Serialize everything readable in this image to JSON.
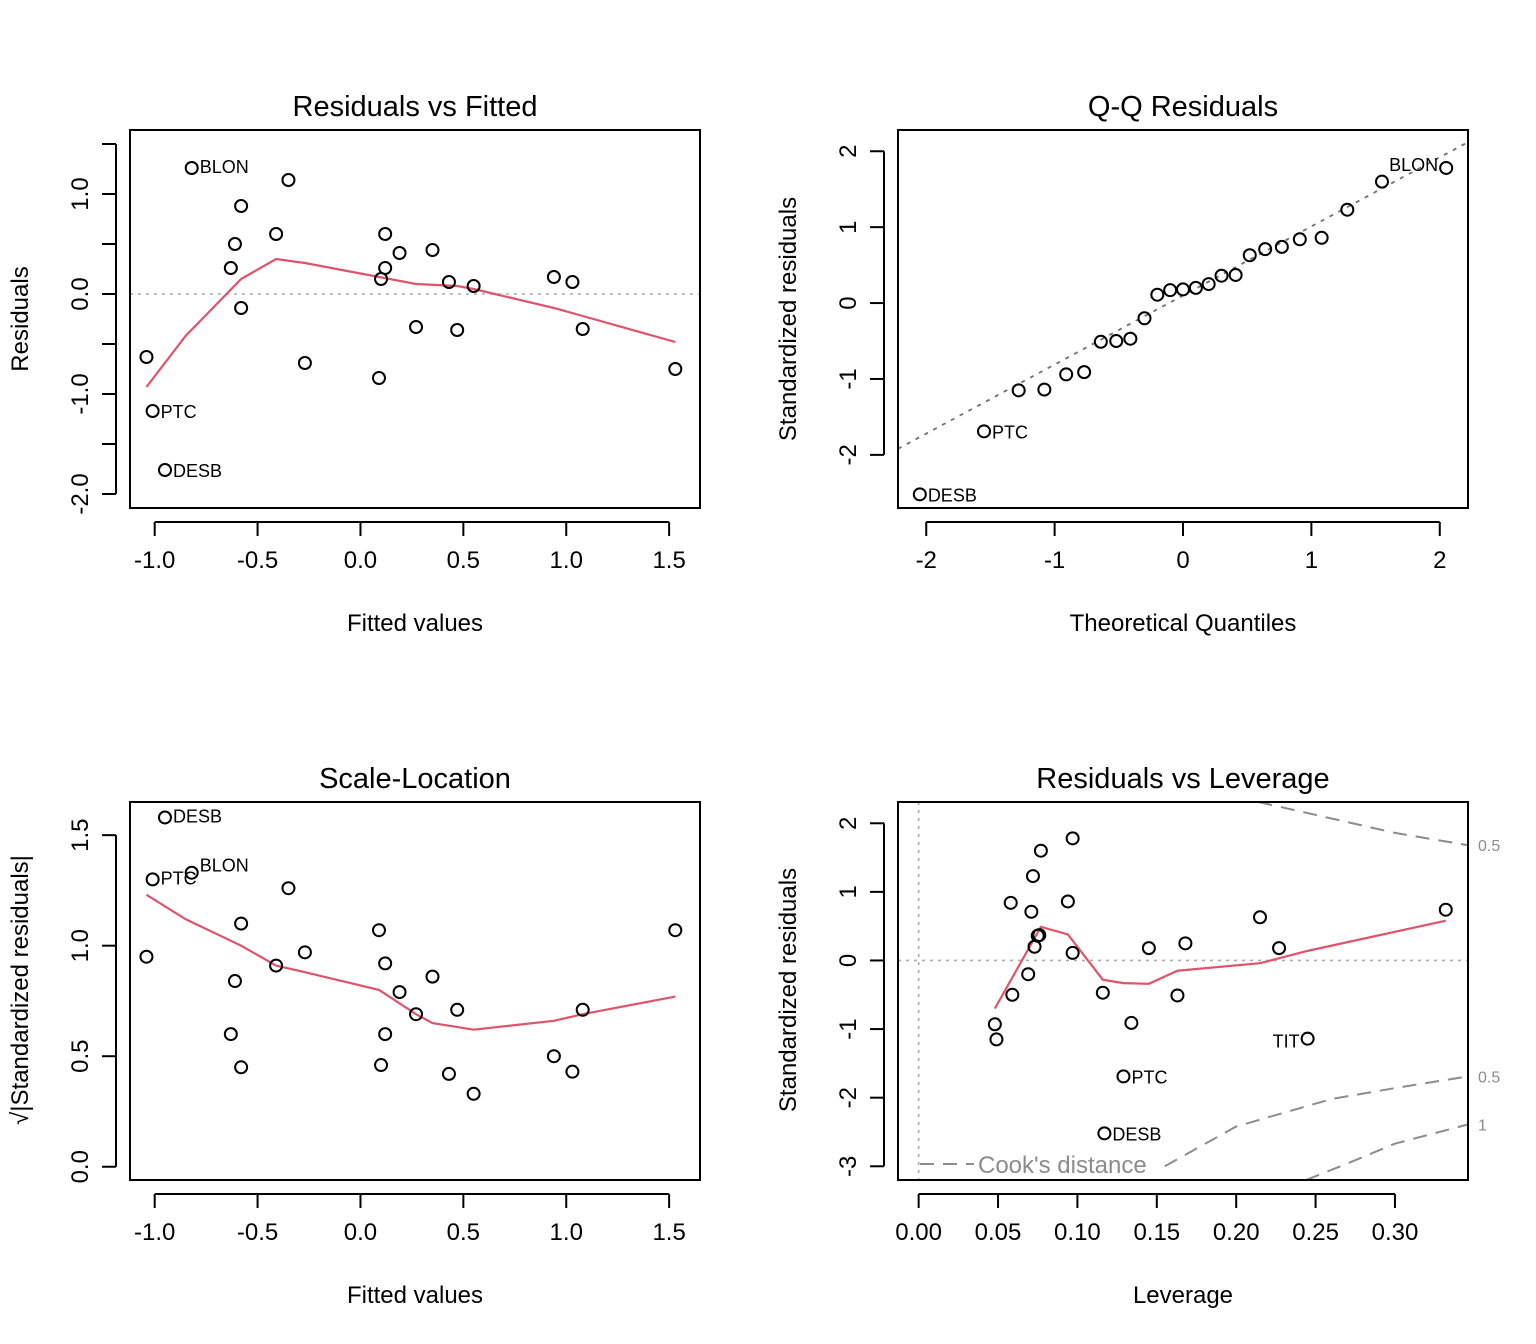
{
  "chart_data": [
    {
      "type": "scatter",
      "title": "Residuals vs Fitted",
      "xlabel": "Fitted values",
      "ylabel": "Residuals",
      "xlim": [
        -1.12,
        1.65
      ],
      "ylim": [
        -2.14,
        1.64
      ],
      "xticks": [
        -1.0,
        -0.5,
        0.0,
        0.5,
        1.0,
        1.5
      ],
      "xtick_labels": [
        "-1.0",
        "-0.5",
        "0.0",
        "0.5",
        "1.0",
        "1.5"
      ],
      "yticks": [
        -2.0,
        -1.5,
        -1.0,
        -0.5,
        0.0,
        0.5,
        1.0,
        1.5
      ],
      "ytick_labels": [
        "-2.0",
        "",
        "-1.0",
        "",
        "0.0",
        "",
        "1.0",
        ""
      ],
      "hline": 0,
      "points": [
        {
          "x": -1.04,
          "y": -0.63,
          "label": ""
        },
        {
          "x": -1.01,
          "y": -1.17,
          "label": "PTC"
        },
        {
          "x": -0.95,
          "y": -1.76,
          "label": "DESB"
        },
        {
          "x": -0.82,
          "y": 1.26,
          "label": "BLON"
        },
        {
          "x": -0.63,
          "y": 0.26,
          "label": ""
        },
        {
          "x": -0.61,
          "y": 0.5,
          "label": ""
        },
        {
          "x": -0.58,
          "y": 0.88,
          "label": ""
        },
        {
          "x": -0.58,
          "y": -0.14,
          "label": ""
        },
        {
          "x": -0.41,
          "y": 0.6,
          "label": ""
        },
        {
          "x": -0.35,
          "y": 1.14,
          "label": ""
        },
        {
          "x": -0.27,
          "y": -0.69,
          "label": ""
        },
        {
          "x": 0.09,
          "y": -0.84,
          "label": ""
        },
        {
          "x": 0.1,
          "y": 0.15,
          "label": ""
        },
        {
          "x": 0.12,
          "y": 0.26,
          "label": ""
        },
        {
          "x": 0.12,
          "y": 0.6,
          "label": ""
        },
        {
          "x": 0.19,
          "y": 0.41,
          "label": ""
        },
        {
          "x": 0.27,
          "y": -0.33,
          "label": ""
        },
        {
          "x": 0.35,
          "y": 0.44,
          "label": ""
        },
        {
          "x": 0.43,
          "y": 0.12,
          "label": ""
        },
        {
          "x": 0.47,
          "y": -0.36,
          "label": ""
        },
        {
          "x": 0.55,
          "y": 0.08,
          "label": ""
        },
        {
          "x": 0.94,
          "y": 0.17,
          "label": ""
        },
        {
          "x": 1.03,
          "y": 0.12,
          "label": ""
        },
        {
          "x": 1.08,
          "y": -0.35,
          "label": ""
        },
        {
          "x": 1.53,
          "y": -0.75,
          "label": ""
        }
      ],
      "smooth": {
        "x": [
          -1.04,
          -0.85,
          -0.58,
          -0.41,
          -0.27,
          0.09,
          0.27,
          0.47,
          0.55,
          0.94,
          1.08,
          1.53
        ],
        "y": [
          -0.93,
          -0.42,
          0.15,
          0.35,
          0.31,
          0.17,
          0.1,
          0.08,
          0.05,
          -0.14,
          -0.22,
          -0.48
        ]
      }
    },
    {
      "type": "scatter",
      "title": "Q-Q Residuals",
      "xlabel": "Theoretical Quantiles",
      "ylabel": "Standardized residuals",
      "xlim": [
        -2.22,
        2.22
      ],
      "ylim": [
        -2.7,
        2.28
      ],
      "xticks": [
        -2,
        -1,
        0,
        1,
        2
      ],
      "xtick_labels": [
        "-2",
        "-1",
        "0",
        "1",
        "2"
      ],
      "yticks": [
        -2,
        -1,
        0,
        1,
        2
      ],
      "ytick_labels": [
        "-2",
        "-1",
        "0",
        "1",
        "2"
      ],
      "reference_line": {
        "intercept": 0.1,
        "slope": 0.91
      },
      "points": [
        {
          "x": -2.05,
          "y": -2.52,
          "label": "DESB"
        },
        {
          "x": -1.55,
          "y": -1.69,
          "label": "PTC"
        },
        {
          "x": -1.28,
          "y": -1.15,
          "label": ""
        },
        {
          "x": -1.08,
          "y": -1.14,
          "label": ""
        },
        {
          "x": -0.91,
          "y": -0.94,
          "label": ""
        },
        {
          "x": -0.77,
          "y": -0.91,
          "label": ""
        },
        {
          "x": -0.64,
          "y": -0.51,
          "label": ""
        },
        {
          "x": -0.52,
          "y": -0.5,
          "label": ""
        },
        {
          "x": -0.41,
          "y": -0.47,
          "label": ""
        },
        {
          "x": -0.3,
          "y": -0.2,
          "label": ""
        },
        {
          "x": -0.2,
          "y": 0.11,
          "label": ""
        },
        {
          "x": -0.1,
          "y": 0.17,
          "label": ""
        },
        {
          "x": 0.0,
          "y": 0.18,
          "label": ""
        },
        {
          "x": 0.1,
          "y": 0.2,
          "label": ""
        },
        {
          "x": 0.2,
          "y": 0.25,
          "label": ""
        },
        {
          "x": 0.3,
          "y": 0.36,
          "label": ""
        },
        {
          "x": 0.41,
          "y": 0.37,
          "label": ""
        },
        {
          "x": 0.52,
          "y": 0.63,
          "label": ""
        },
        {
          "x": 0.64,
          "y": 0.71,
          "label": ""
        },
        {
          "x": 0.77,
          "y": 0.74,
          "label": ""
        },
        {
          "x": 0.91,
          "y": 0.84,
          "label": ""
        },
        {
          "x": 1.08,
          "y": 0.86,
          "label": ""
        },
        {
          "x": 1.28,
          "y": 1.23,
          "label": ""
        },
        {
          "x": 1.55,
          "y": 1.6,
          "label": ""
        },
        {
          "x": 2.05,
          "y": 1.78,
          "label": "BLON"
        }
      ]
    },
    {
      "type": "scatter",
      "title": "Scale-Location",
      "xlabel": "Fitted values",
      "ylabel": "√|Standardized residuals|",
      "xlim": [
        -1.12,
        1.65
      ],
      "ylim": [
        -0.06,
        1.65
      ],
      "xticks": [
        -1.0,
        -0.5,
        0.0,
        0.5,
        1.0,
        1.5
      ],
      "xtick_labels": [
        "-1.0",
        "-0.5",
        "0.0",
        "0.5",
        "1.0",
        "1.5"
      ],
      "yticks": [
        0.0,
        0.5,
        1.0,
        1.5
      ],
      "ytick_labels": [
        "0.0",
        "0.5",
        "1.0",
        "1.5"
      ],
      "points": [
        {
          "x": -1.04,
          "y": 0.95,
          "label": ""
        },
        {
          "x": -1.01,
          "y": 1.3,
          "label": "PTC"
        },
        {
          "x": -0.95,
          "y": 1.58,
          "label": "DESB"
        },
        {
          "x": -0.82,
          "y": 1.33,
          "label": "BLON"
        },
        {
          "x": -0.63,
          "y": 0.6,
          "label": ""
        },
        {
          "x": -0.61,
          "y": 0.84,
          "label": ""
        },
        {
          "x": -0.58,
          "y": 1.1,
          "label": ""
        },
        {
          "x": -0.58,
          "y": 0.45,
          "label": ""
        },
        {
          "x": -0.41,
          "y": 0.91,
          "label": ""
        },
        {
          "x": -0.35,
          "y": 1.26,
          "label": ""
        },
        {
          "x": -0.27,
          "y": 0.97,
          "label": ""
        },
        {
          "x": 0.09,
          "y": 1.07,
          "label": ""
        },
        {
          "x": 0.1,
          "y": 0.46,
          "label": ""
        },
        {
          "x": 0.12,
          "y": 0.6,
          "label": ""
        },
        {
          "x": 0.12,
          "y": 0.92,
          "label": ""
        },
        {
          "x": 0.19,
          "y": 0.79,
          "label": ""
        },
        {
          "x": 0.27,
          "y": 0.69,
          "label": ""
        },
        {
          "x": 0.35,
          "y": 0.86,
          "label": ""
        },
        {
          "x": 0.43,
          "y": 0.42,
          "label": ""
        },
        {
          "x": 0.47,
          "y": 0.71,
          "label": ""
        },
        {
          "x": 0.55,
          "y": 0.33,
          "label": ""
        },
        {
          "x": 0.94,
          "y": 0.5,
          "label": ""
        },
        {
          "x": 1.03,
          "y": 0.43,
          "label": ""
        },
        {
          "x": 1.08,
          "y": 0.71,
          "label": ""
        },
        {
          "x": 1.53,
          "y": 1.07,
          "label": ""
        }
      ],
      "smooth": {
        "x": [
          -1.04,
          -0.85,
          -0.58,
          -0.41,
          -0.27,
          0.09,
          0.27,
          0.35,
          0.55,
          0.94,
          1.08,
          1.53
        ],
        "y": [
          1.23,
          1.12,
          1.0,
          0.91,
          0.88,
          0.8,
          0.69,
          0.65,
          0.62,
          0.66,
          0.69,
          0.77
        ]
      }
    },
    {
      "type": "scatter",
      "title": "Residuals vs Leverage",
      "xlabel": "Leverage",
      "ylabel": "Standardized residuals",
      "xlim": [
        -0.013,
        0.346
      ],
      "ylim": [
        -3.2,
        2.31
      ],
      "xticks": [
        0.0,
        0.05,
        0.1,
        0.15,
        0.2,
        0.25,
        0.3
      ],
      "xtick_labels": [
        "0.00",
        "0.05",
        "0.10",
        "0.15",
        "0.20",
        "0.25",
        "0.30"
      ],
      "yticks": [
        -3,
        -2,
        -1,
        0,
        1,
        2
      ],
      "ytick_labels": [
        "-3",
        "-2",
        "-1",
        "0",
        "1",
        "2"
      ],
      "hline": 0,
      "vline": 0,
      "points": [
        {
          "x": 0.048,
          "y": -0.93,
          "label": ""
        },
        {
          "x": 0.049,
          "y": -1.15,
          "label": ""
        },
        {
          "x": 0.058,
          "y": 0.84,
          "label": ""
        },
        {
          "x": 0.059,
          "y": -0.5,
          "label": ""
        },
        {
          "x": 0.069,
          "y": -0.2,
          "label": ""
        },
        {
          "x": 0.071,
          "y": 0.71,
          "label": ""
        },
        {
          "x": 0.072,
          "y": 1.23,
          "label": ""
        },
        {
          "x": 0.073,
          "y": 0.2,
          "label": ""
        },
        {
          "x": 0.075,
          "y": 0.36,
          "label": ""
        },
        {
          "x": 0.076,
          "y": 0.37,
          "label": ""
        },
        {
          "x": 0.077,
          "y": 1.6,
          "label": ""
        },
        {
          "x": 0.094,
          "y": 0.86,
          "label": ""
        },
        {
          "x": 0.097,
          "y": 1.78,
          "label": ""
        },
        {
          "x": 0.097,
          "y": 0.11,
          "label": ""
        },
        {
          "x": 0.116,
          "y": -0.47,
          "label": ""
        },
        {
          "x": 0.117,
          "y": -2.52,
          "label": "DESB"
        },
        {
          "x": 0.129,
          "y": -1.69,
          "label": "PTC"
        },
        {
          "x": 0.134,
          "y": -0.91,
          "label": ""
        },
        {
          "x": 0.145,
          "y": 0.18,
          "label": ""
        },
        {
          "x": 0.163,
          "y": -0.51,
          "label": ""
        },
        {
          "x": 0.168,
          "y": 0.25,
          "label": ""
        },
        {
          "x": 0.215,
          "y": 0.63,
          "label": ""
        },
        {
          "x": 0.227,
          "y": 0.18,
          "label": ""
        },
        {
          "x": 0.245,
          "y": -1.14,
          "label": "TIT"
        },
        {
          "x": 0.332,
          "y": 0.74,
          "label": ""
        }
      ],
      "smooth": {
        "x": [
          0.048,
          0.077,
          0.094,
          0.116,
          0.129,
          0.145,
          0.163,
          0.215,
          0.245,
          0.332
        ],
        "y": [
          -0.7,
          0.49,
          0.38,
          -0.28,
          -0.33,
          -0.34,
          -0.15,
          -0.04,
          0.14,
          0.58
        ]
      },
      "cooks_distance": {
        "legend": "Cook's distance",
        "levels": [
          {
            "level": 0.5,
            "label": "0.5",
            "sign": "upper",
            "points": [
              [
                0.214,
                2.31
              ],
              [
                0.26,
                2.07
              ],
              [
                0.3,
                1.86
              ],
              [
                0.346,
                1.68
              ]
            ]
          },
          {
            "level": 0.5,
            "label": "0.5",
            "sign": "lower",
            "points": [
              [
                0.155,
                -3.0
              ],
              [
                0.2,
                -2.42
              ],
              [
                0.26,
                -2.02
              ],
              [
                0.3,
                -1.86
              ],
              [
                0.346,
                -1.69
              ]
            ]
          },
          {
            "level": 1,
            "label": "1",
            "sign": "lower",
            "points": [
              [
                0.244,
                -3.2
              ],
              [
                0.27,
                -2.96
              ],
              [
                0.3,
                -2.67
              ],
              [
                0.346,
                -2.39
              ]
            ]
          }
        ]
      }
    }
  ]
}
